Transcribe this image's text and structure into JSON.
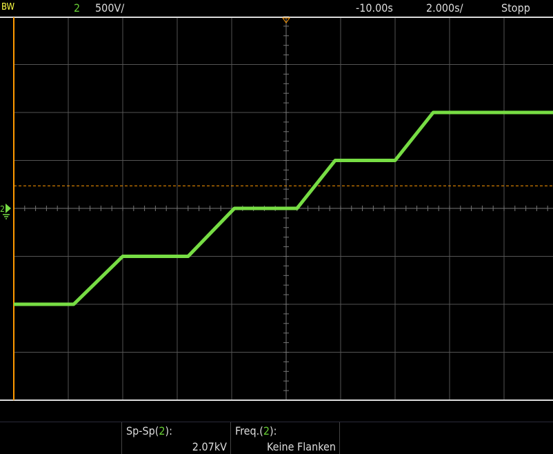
{
  "header": {
    "bw": "BW",
    "channel": "2",
    "vdiv": "500V/",
    "delay": "-10.00s",
    "tdiv": "2.000s/",
    "state": "Stopp"
  },
  "measurements": [
    {
      "label_pre": "Sp-Sp(",
      "ch": "2",
      "label_post": "):",
      "value": "2.07kV"
    },
    {
      "label_pre": "Freq.(",
      "ch": "2",
      "label_post": "):",
      "value": "Keine Flanken"
    }
  ],
  "colors": {
    "channel2": "#77dd44",
    "trigger": "#ff9900",
    "bw": "#ffff44",
    "grid": "#555555"
  },
  "chart_data": {
    "type": "line",
    "divisions_x": 10,
    "divisions_y": 8,
    "waveform_div": [
      [
        -5,
        -2
      ],
      [
        -3.9,
        -2
      ],
      [
        -3,
        -1
      ],
      [
        -1.8,
        -1
      ],
      [
        -0.95,
        0
      ],
      [
        0.2,
        0
      ],
      [
        0.9,
        1
      ],
      [
        2,
        1
      ],
      [
        2.7,
        2
      ],
      [
        5,
        2
      ]
    ],
    "trigger_level_div": 0.47
  }
}
